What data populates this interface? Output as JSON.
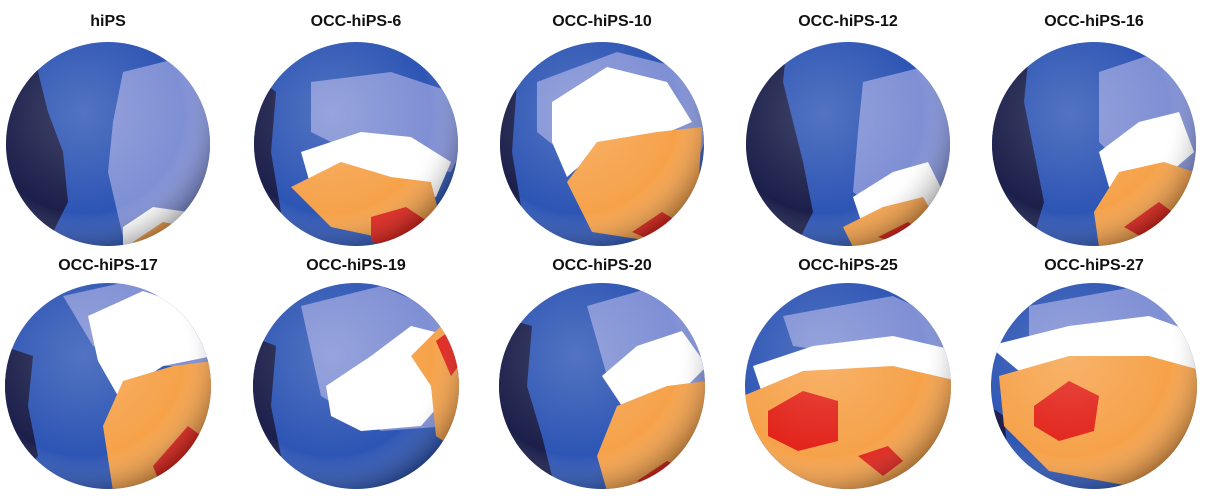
{
  "palette": {
    "shadow": "#1b1f4a",
    "blue": "#2d55b4",
    "lavender": "#7f8fd4",
    "white": "#ffffff",
    "orange": "#f6a24a",
    "red": "#e2231a"
  },
  "panels": [
    {
      "label": "hiPS"
    },
    {
      "label": "OCC-hiPS-6"
    },
    {
      "label": "OCC-hiPS-10"
    },
    {
      "label": "OCC-hiPS-12"
    },
    {
      "label": "OCC-hiPS-16"
    },
    {
      "label": "OCC-hiPS-17"
    },
    {
      "label": "OCC-hiPS-19"
    },
    {
      "label": "OCC-hiPS-20"
    },
    {
      "label": "OCC-hiPS-25"
    },
    {
      "label": "OCC-hiPS-27"
    }
  ]
}
